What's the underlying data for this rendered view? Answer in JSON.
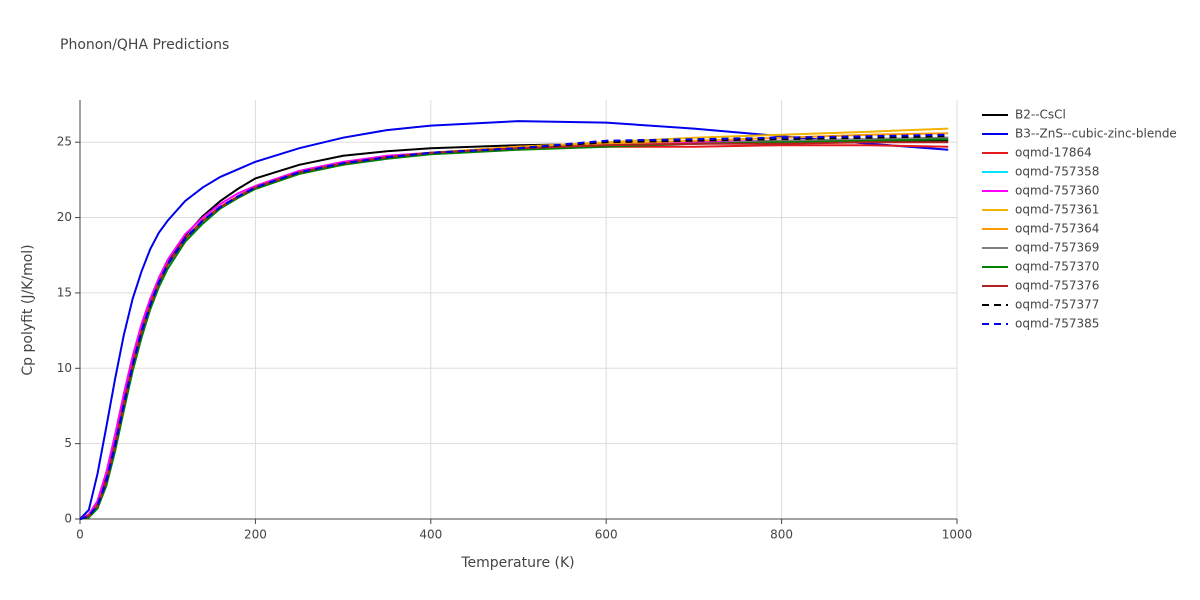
{
  "chart_data": {
    "type": "line",
    "title": "Phonon/QHA Predictions",
    "x_label": "Temperature (K)",
    "y_label": "Cp polyfit (J/K/mol)",
    "x": [
      0,
      10,
      20,
      30,
      40,
      50,
      60,
      70,
      80,
      90,
      100,
      120,
      140,
      160,
      180,
      200,
      250,
      300,
      350,
      400,
      500,
      600,
      700,
      800,
      900,
      990
    ],
    "xlim": [
      0,
      1000
    ],
    "xticks": [
      0,
      200,
      400,
      600,
      800,
      1000
    ],
    "ylim": [
      0,
      27.8
    ],
    "yticks": [
      0,
      5,
      10,
      15,
      20,
      25
    ],
    "grid": true,
    "legend": "right",
    "series": [
      {
        "name": "B2--CsCl",
        "color": "#000000",
        "dash": false,
        "values": [
          0,
          0.3,
          1.1,
          2.9,
          5.3,
          8.0,
          10.5,
          12.7,
          14.5,
          15.9,
          17.1,
          18.8,
          20.1,
          21.1,
          21.9,
          22.6,
          23.5,
          24.1,
          24.4,
          24.6,
          24.8,
          24.9,
          24.9,
          25.0,
          25.0,
          25.1
        ]
      },
      {
        "name": "B3--ZnS--cubic-zinc-blende",
        "color": "#0000ee",
        "dash": false,
        "values": [
          0,
          0.6,
          3.0,
          6.1,
          9.3,
          12.2,
          14.6,
          16.4,
          17.9,
          19.0,
          19.8,
          21.1,
          22.0,
          22.7,
          23.2,
          23.7,
          24.6,
          25.3,
          25.8,
          26.1,
          26.4,
          26.3,
          25.9,
          25.4,
          24.9,
          24.5
        ]
      },
      {
        "name": "oqmd-17864",
        "color": "#e41a1c",
        "dash": false,
        "values": [
          0,
          0.2,
          0.9,
          2.5,
          4.9,
          7.6,
          10.2,
          12.4,
          14.2,
          15.7,
          16.9,
          18.6,
          19.8,
          20.7,
          21.4,
          22.0,
          23.0,
          23.6,
          24.0,
          24.3,
          24.6,
          24.7,
          24.7,
          24.8,
          24.8,
          24.7
        ]
      },
      {
        "name": "oqmd-757358",
        "color": "#00e5ff",
        "dash": false,
        "values": [
          0,
          0.2,
          0.9,
          2.5,
          4.9,
          7.6,
          10.2,
          12.4,
          14.2,
          15.7,
          16.9,
          18.6,
          19.8,
          20.7,
          21.4,
          22.0,
          23.0,
          23.6,
          24.0,
          24.3,
          24.6,
          24.8,
          24.9,
          25.1,
          25.2,
          25.3
        ]
      },
      {
        "name": "oqmd-757360",
        "color": "#ff00ff",
        "dash": false,
        "values": [
          0,
          0.3,
          1.2,
          3.1,
          5.6,
          8.3,
          10.8,
          12.9,
          14.6,
          16.0,
          17.2,
          18.9,
          20.0,
          20.9,
          21.6,
          22.1,
          23.1,
          23.7,
          24.1,
          24.3,
          24.6,
          24.8,
          25.0,
          25.1,
          25.2,
          25.3
        ]
      },
      {
        "name": "oqmd-757361",
        "color": "#f0b400",
        "dash": false,
        "values": [
          0,
          0.2,
          0.9,
          2.5,
          4.9,
          7.6,
          10.2,
          12.4,
          14.2,
          15.7,
          16.9,
          18.6,
          19.8,
          20.7,
          21.4,
          22.0,
          23.0,
          23.6,
          24.0,
          24.3,
          24.7,
          25.0,
          25.3,
          25.5,
          25.7,
          25.9
        ]
      },
      {
        "name": "oqmd-757364",
        "color": "#ff9900",
        "dash": false,
        "values": [
          0,
          0.2,
          0.9,
          2.5,
          4.9,
          7.6,
          10.2,
          12.4,
          14.2,
          15.7,
          16.9,
          18.6,
          19.8,
          20.7,
          21.4,
          22.0,
          23.0,
          23.6,
          24.0,
          24.3,
          24.7,
          24.9,
          25.1,
          25.3,
          25.5,
          25.6
        ]
      },
      {
        "name": "oqmd-757369",
        "color": "#808080",
        "dash": false,
        "values": [
          0,
          0.2,
          0.9,
          2.5,
          4.9,
          7.6,
          10.2,
          12.4,
          14.2,
          15.7,
          16.9,
          18.6,
          19.8,
          20.7,
          21.4,
          22.0,
          23.0,
          23.6,
          24.0,
          24.3,
          24.6,
          24.8,
          24.9,
          25.1,
          25.2,
          25.3
        ]
      },
      {
        "name": "oqmd-757370",
        "color": "#008000",
        "dash": false,
        "values": [
          0,
          0.1,
          0.7,
          2.2,
          4.5,
          7.2,
          9.8,
          12.0,
          13.9,
          15.4,
          16.6,
          18.4,
          19.6,
          20.6,
          21.3,
          21.9,
          22.9,
          23.5,
          23.9,
          24.2,
          24.5,
          24.7,
          24.9,
          25.0,
          25.1,
          25.2
        ]
      },
      {
        "name": "oqmd-757376",
        "color": "#b22222",
        "dash": false,
        "values": [
          0,
          0.2,
          0.9,
          2.5,
          4.9,
          7.6,
          10.2,
          12.4,
          14.2,
          15.7,
          16.9,
          18.6,
          19.8,
          20.7,
          21.4,
          22.0,
          23.0,
          23.6,
          24.0,
          24.3,
          24.6,
          24.8,
          24.9,
          24.9,
          25.0,
          25.0
        ]
      },
      {
        "name": "oqmd-757377",
        "color": "#000000",
        "dash": true,
        "values": [
          0,
          0.2,
          0.9,
          2.5,
          4.9,
          7.6,
          10.2,
          12.4,
          14.2,
          15.7,
          16.9,
          18.6,
          19.8,
          20.7,
          21.4,
          22.0,
          23.0,
          23.6,
          24.0,
          24.3,
          24.6,
          25.0,
          25.1,
          25.2,
          25.3,
          25.4
        ]
      },
      {
        "name": "oqmd-757385",
        "color": "#0000ee",
        "dash": true,
        "values": [
          0,
          0.2,
          0.9,
          2.5,
          4.9,
          7.6,
          10.2,
          12.4,
          14.2,
          15.7,
          16.9,
          18.6,
          19.8,
          20.7,
          21.4,
          22.0,
          23.0,
          23.6,
          24.0,
          24.3,
          24.6,
          25.1,
          25.2,
          25.3,
          25.4,
          25.5
        ]
      }
    ]
  }
}
